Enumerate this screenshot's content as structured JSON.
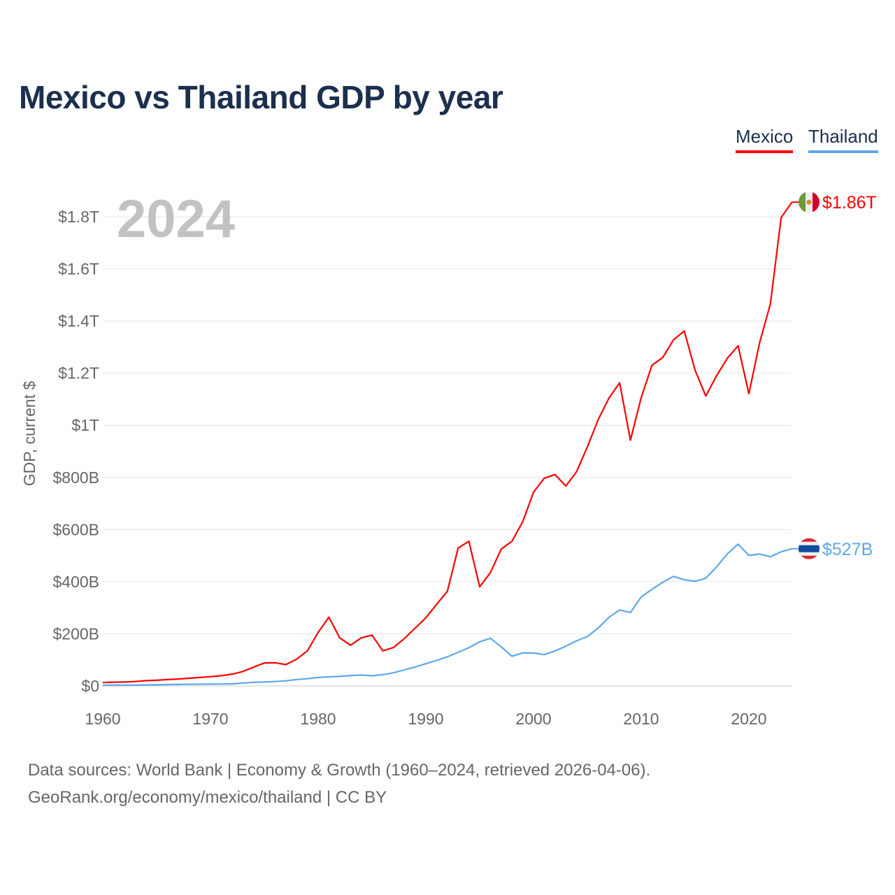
{
  "chart_data": {
    "type": "line",
    "title": "Mexico vs Thailand GDP by year",
    "ylabel": "GDP, current $",
    "xlabel": "",
    "year_overlay": "2024",
    "xlim": [
      1960,
      2024
    ],
    "ylim": [
      0,
      1800
    ],
    "y_unit": "billions USD",
    "grid": true,
    "legend_position": "top-right",
    "x_ticks": [
      1960,
      1970,
      1980,
      1990,
      2000,
      2010,
      2020
    ],
    "y_ticks": [
      {
        "value": 0,
        "label": "$0"
      },
      {
        "value": 200,
        "label": "$200B"
      },
      {
        "value": 400,
        "label": "$400B"
      },
      {
        "value": 600,
        "label": "$600B"
      },
      {
        "value": 800,
        "label": "$800B"
      },
      {
        "value": 1000,
        "label": "$1T"
      },
      {
        "value": 1200,
        "label": "$1.2T"
      },
      {
        "value": 1400,
        "label": "$1.4T"
      },
      {
        "value": 1600,
        "label": "$1.6T"
      },
      {
        "value": 1800,
        "label": "$1.8T"
      }
    ],
    "x_start": 1960,
    "series": [
      {
        "name": "Mexico",
        "color": "#ff0000",
        "end_label": "$1.86T",
        "flag": "mexico-flag",
        "values": [
          13,
          14.2,
          15.2,
          17,
          20.1,
          21.8,
          24.3,
          26.6,
          29.4,
          32.5,
          35.5,
          39.2,
          45.2,
          55.3,
          72,
          88,
          89,
          81.7,
          102.4,
          134.5,
          205.1,
          263.9,
          184.5,
          156.2,
          184.3,
          195.2,
          134.6,
          147.5,
          181.6,
          221.4,
          261.3,
          313.1,
          363.2,
          529,
          555,
          380,
          435,
          525,
          555,
          630,
          743,
          797,
          811,
          767,
          822,
          917,
          1021,
          1104,
          1163,
          943,
          1106,
          1230,
          1260,
          1328,
          1362,
          1212,
          1112,
          1190,
          1257,
          1305,
          1121,
          1317,
          1466,
          1797,
          1856
        ]
      },
      {
        "name": "Thailand",
        "color": "#5fa8ea",
        "end_label": "$527B",
        "flag": "thailand-flag",
        "values": [
          2.8,
          3,
          3.3,
          3.5,
          3.9,
          4.4,
          5.3,
          5.6,
          6.1,
          6.7,
          7.1,
          7.4,
          8.1,
          10.9,
          13.7,
          14.9,
          16.9,
          19.7,
          24.8,
          28,
          32.4,
          34.8,
          36.6,
          40,
          41.8,
          38.9,
          43.1,
          50.5,
          61.7,
          72.3,
          85.3,
          98.2,
          111.5,
          128.9,
          146.7,
          169.3,
          183,
          150.2,
          113.7,
          126.7,
          126.4,
          120.3,
          134.3,
          152.3,
          172.9,
          189.3,
          221.8,
          262.9,
          291.4,
          281.7,
          341.1,
          370.8,
          397.6,
          420.3,
          407.3,
          401.3,
          413.4,
          456.4,
          506.5,
          544,
          500.5,
          506,
          495.6,
          514.9,
          526.4
        ]
      }
    ]
  },
  "footer": {
    "line1": "Data sources: World Bank | Economy & Growth (1960–2024, retrieved 2026-04-06).",
    "line2": "GeoRank.org/economy/mexico/thailand | CC BY"
  }
}
